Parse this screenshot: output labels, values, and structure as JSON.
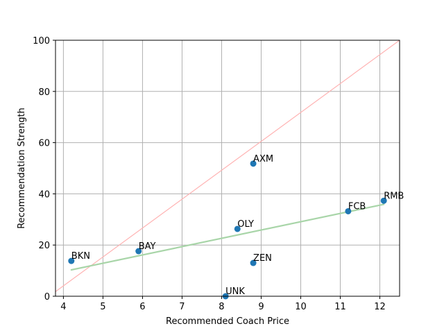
{
  "chart_data": {
    "type": "scatter",
    "title": "",
    "xlabel": "Recommended Coach Price",
    "ylabel": "Recommendation Strength",
    "xlim": [
      3.8,
      12.5
    ],
    "ylim": [
      0,
      100
    ],
    "xticks": [
      4,
      5,
      6,
      7,
      8,
      9,
      10,
      11,
      12
    ],
    "yticks": [
      0,
      20,
      40,
      60,
      80,
      100
    ],
    "grid": true,
    "points": [
      {
        "label": "AXM",
        "x": 8.8,
        "y": 51.8
      },
      {
        "label": "RMB",
        "x": 12.1,
        "y": 37.3
      },
      {
        "label": "FCB",
        "x": 11.2,
        "y": 33.2
      },
      {
        "label": "OLY",
        "x": 8.4,
        "y": 26.3
      },
      {
        "label": "BAY",
        "x": 5.9,
        "y": 17.6
      },
      {
        "label": "BKN",
        "x": 4.2,
        "y": 13.8
      },
      {
        "label": "ZEN",
        "x": 8.8,
        "y": 13.0
      },
      {
        "label": "UNK",
        "x": 8.1,
        "y": 0.0
      }
    ],
    "reference_lines": [
      {
        "x": [
          3.8,
          12.5
        ],
        "y": [
          1.8,
          100.0
        ]
      },
      {
        "x": [
          4.2,
          12.1
        ],
        "y": [
          10.3,
          35.9
        ]
      }
    ],
    "colors": {
      "points": "#1f77b4",
      "grid": "#b0b0b0",
      "reference_line_1": "#ffb3b3",
      "reference_line_2": "#a8d5a8"
    }
  }
}
